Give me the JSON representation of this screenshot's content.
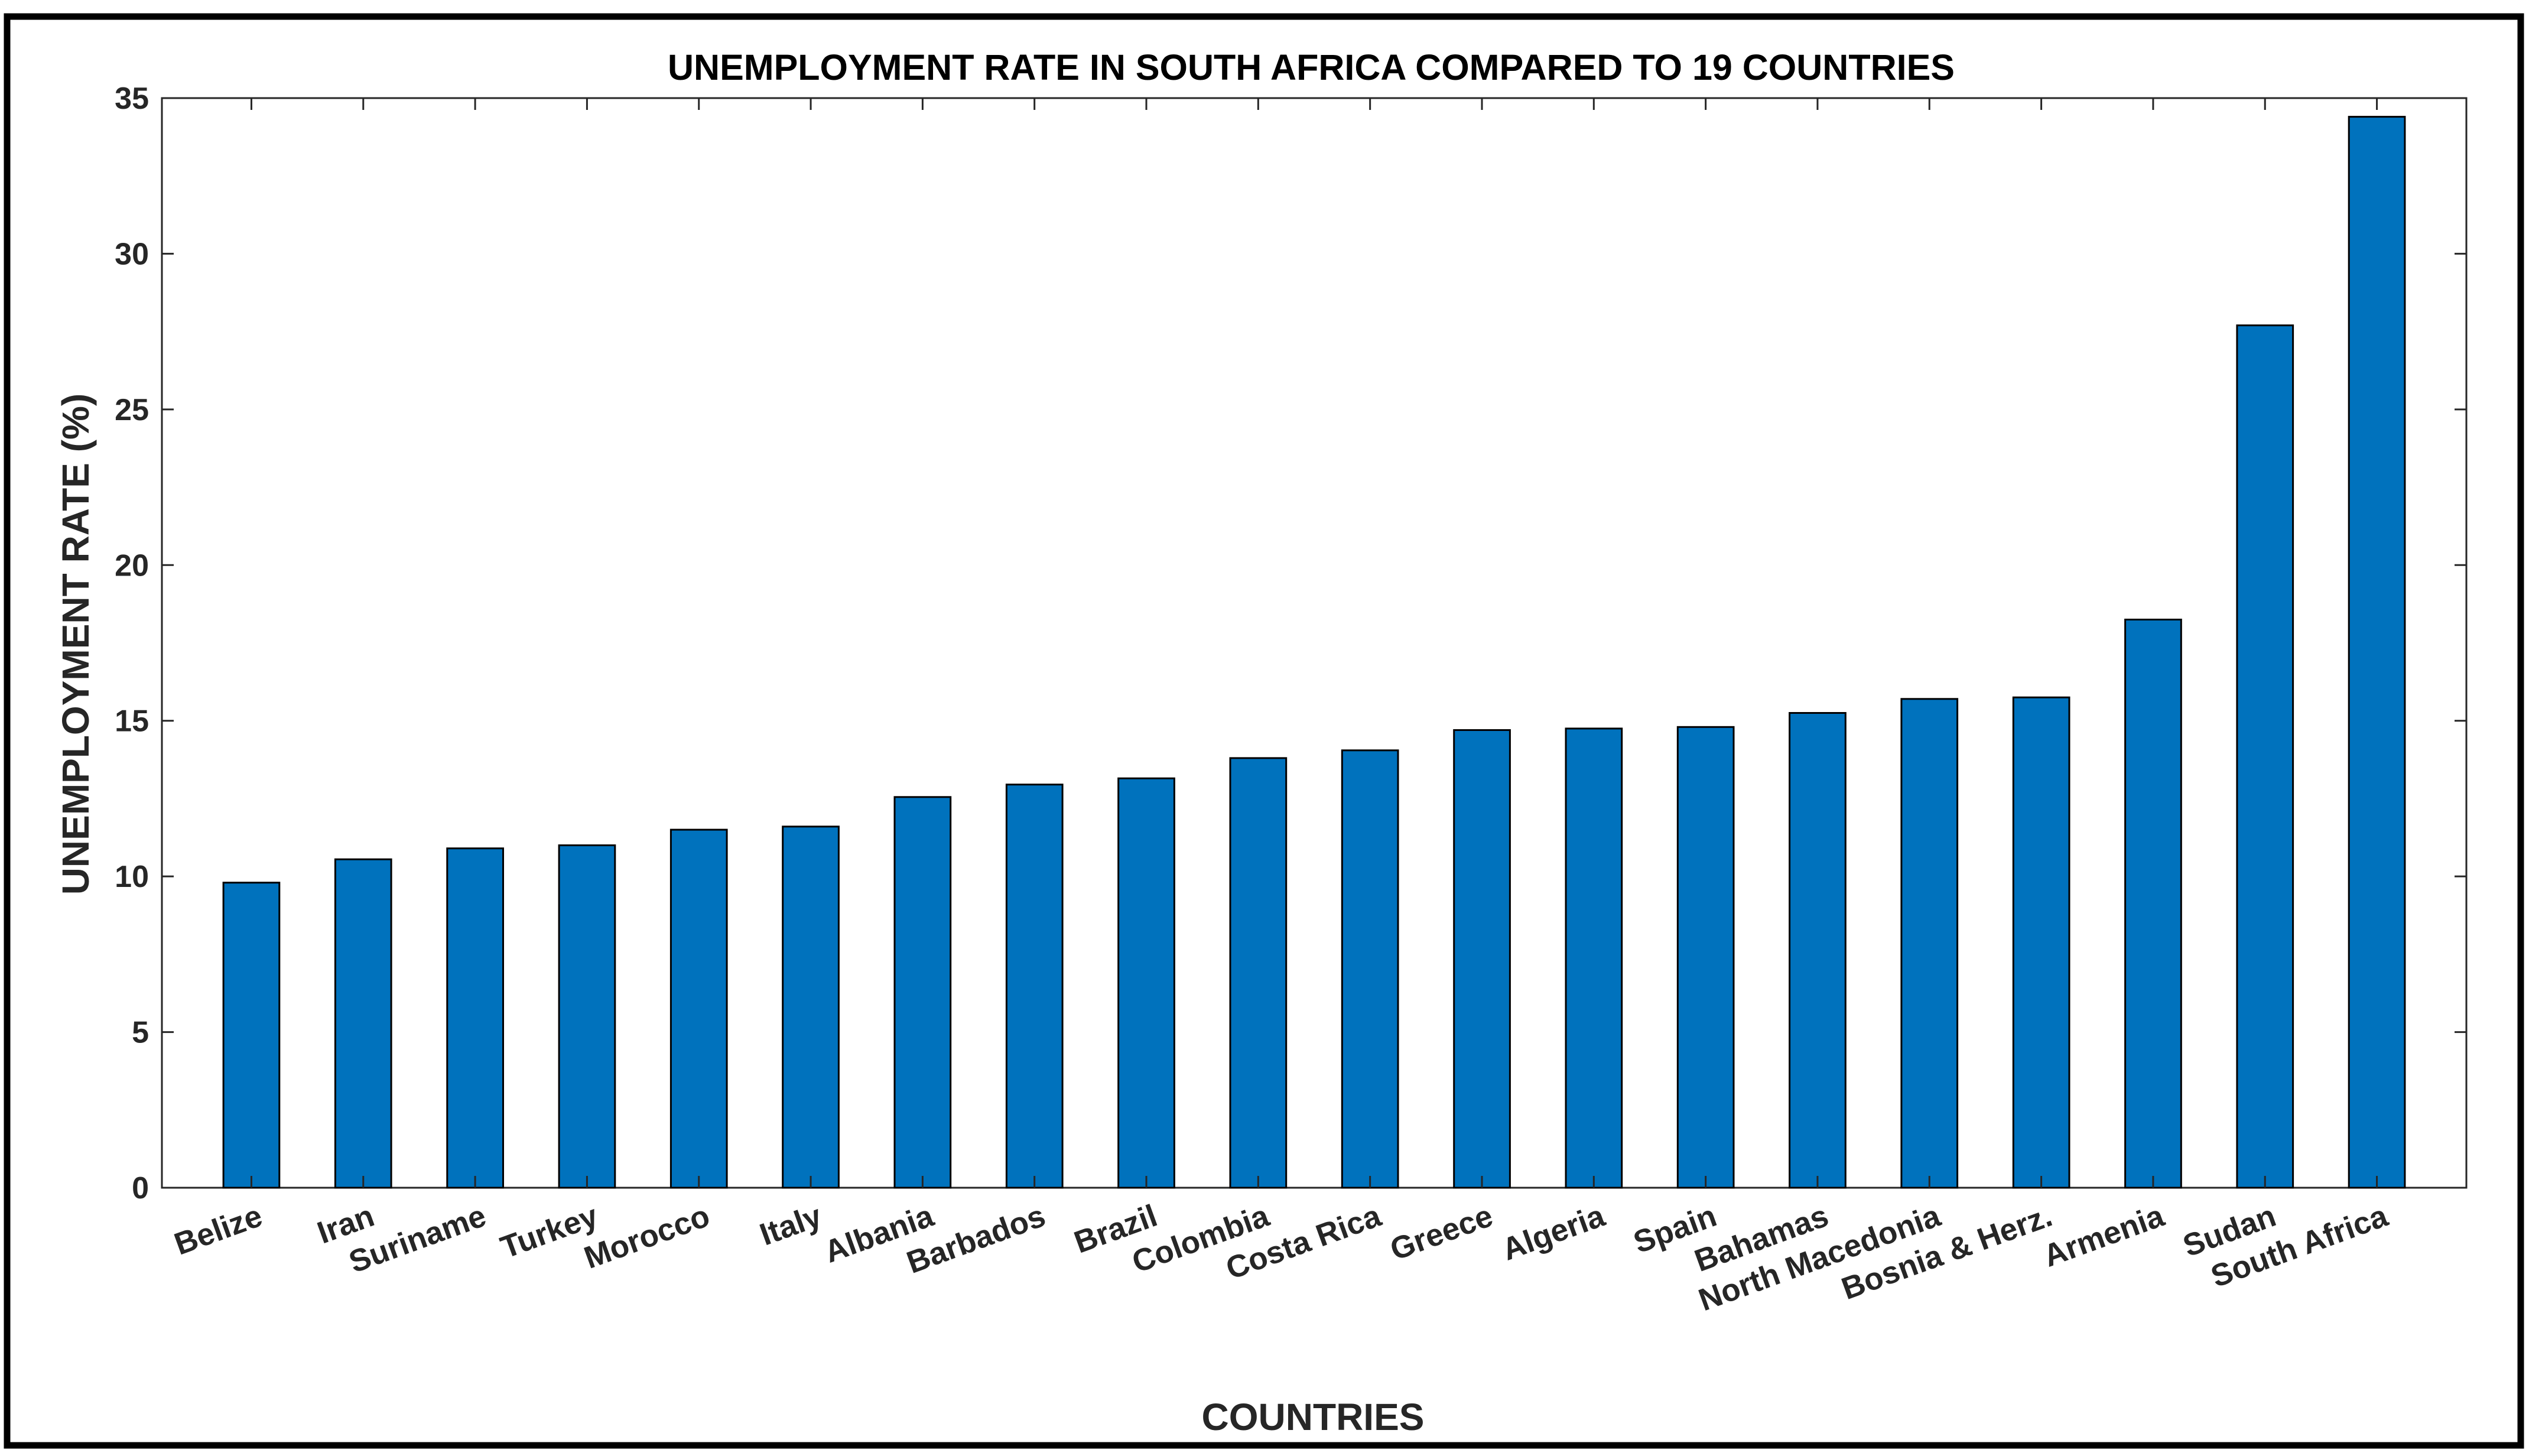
{
  "chart_data": {
    "type": "bar",
    "title": "UNEMPLOYMENT RATE IN SOUTH AFRICA COMPARED TO 19 COUNTRIES",
    "xlabel": "COUNTRIES",
    "ylabel": "UNEMPLOYMENT RATE (%)",
    "categories": [
      "Belize",
      "Iran",
      "Suriname",
      "Turkey",
      "Morocco",
      "Italy",
      "Albania",
      "Barbados",
      "Brazil",
      "Colombia",
      "Costa Rica",
      "Greece",
      "Algeria",
      "Spain",
      "Bahamas",
      "North Macedonia",
      "Bosnia & Herz.",
      "Armenia",
      "Sudan",
      "South Africa"
    ],
    "values": [
      9.8,
      10.55,
      10.9,
      11.0,
      11.5,
      11.6,
      12.55,
      12.95,
      13.15,
      13.8,
      14.05,
      14.7,
      14.75,
      14.8,
      15.25,
      15.7,
      15.75,
      18.25,
      27.7,
      34.4
    ],
    "ylim": [
      0,
      35
    ],
    "yticks": [
      "0",
      "5",
      "10",
      "15",
      "20",
      "25",
      "30",
      "35"
    ],
    "grid": false,
    "bar_color": "#0072BD"
  }
}
